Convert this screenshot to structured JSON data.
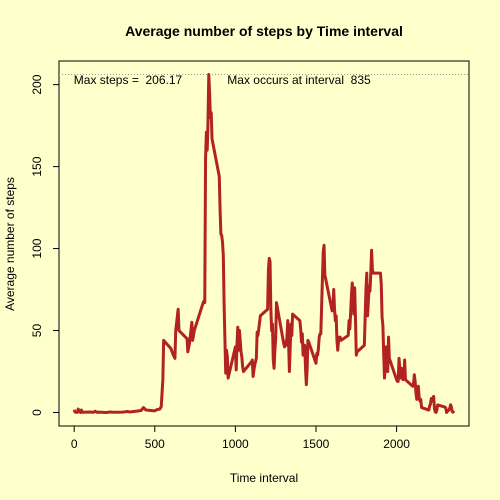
{
  "chart_data": {
    "type": "line",
    "title": "Average number of steps by Time interval",
    "x_label": "Time interval",
    "y_label": "Average number of steps",
    "x": [
      0,
      5,
      10,
      15,
      20,
      25,
      30,
      35,
      40,
      45,
      50,
      55,
      100,
      110,
      120,
      130,
      140,
      150,
      200,
      215,
      230,
      245,
      300,
      315,
      330,
      345,
      400,
      415,
      430,
      445,
      500,
      515,
      530,
      540,
      550,
      555,
      600,
      615,
      625,
      630,
      645,
      650,
      700,
      705,
      715,
      730,
      735,
      745,
      800,
      805,
      810,
      815,
      820,
      825,
      830,
      835,
      840,
      845,
      850,
      855,
      900,
      905,
      910,
      915,
      920,
      925,
      930,
      935,
      940,
      945,
      950,
      955,
      1000,
      1005,
      1010,
      1015,
      1020,
      1025,
      1030,
      1035,
      1040,
      1045,
      1050,
      1100,
      1105,
      1110,
      1115,
      1120,
      1130,
      1135,
      1140,
      1155,
      1200,
      1205,
      1210,
      1215,
      1220,
      1225,
      1230,
      1235,
      1240,
      1245,
      1250,
      1255,
      1300,
      1305,
      1310,
      1315,
      1320,
      1325,
      1330,
      1335,
      1340,
      1345,
      1350,
      1355,
      1400,
      1405,
      1410,
      1415,
      1420,
      1425,
      1430,
      1435,
      1440,
      1445,
      1450,
      1455,
      1500,
      1505,
      1510,
      1515,
      1520,
      1525,
      1530,
      1535,
      1540,
      1545,
      1550,
      1555,
      1600,
      1605,
      1610,
      1615,
      1620,
      1625,
      1630,
      1635,
      1640,
      1645,
      1650,
      1655,
      1700,
      1705,
      1710,
      1715,
      1720,
      1725,
      1730,
      1735,
      1740,
      1745,
      1750,
      1755,
      1800,
      1805,
      1810,
      1815,
      1820,
      1825,
      1830,
      1835,
      1840,
      1845,
      1850,
      1855,
      1900,
      1905,
      1910,
      1915,
      1920,
      1925,
      1930,
      1935,
      1940,
      1945,
      1950,
      1955,
      2000,
      2005,
      2010,
      2015,
      2020,
      2025,
      2030,
      2035,
      2040,
      2045,
      2050,
      2055,
      2100,
      2105,
      2110,
      2115,
      2120,
      2125,
      2130,
      2135,
      2140,
      2145,
      2150,
      2155,
      2200,
      2205,
      2210,
      2215,
      2220,
      2225,
      2230,
      2235,
      2240,
      2245,
      2250,
      2255,
      2300,
      2305,
      2310,
      2315,
      2320,
      2325,
      2330,
      2335,
      2340,
      2345,
      2350,
      2355
    ],
    "series": [
      {
        "name": "Average number of steps",
        "color": "#b22222",
        "values": [
          1.7,
          0.3,
          0.1,
          0.2,
          0.1,
          2.1,
          0.5,
          0.9,
          0,
          1.5,
          0.3,
          0.1,
          0.3,
          0.2,
          0.1,
          0.8,
          0.1,
          0.2,
          0,
          0.2,
          0.3,
          0.1,
          0.2,
          0.4,
          0.6,
          0.3,
          1,
          1.2,
          3,
          1.5,
          1,
          1.8,
          2,
          3.5,
          20,
          44,
          39,
          35,
          33,
          50,
          63,
          50,
          45,
          37,
          42,
          55,
          44,
          50,
          67,
          68,
          67,
          155,
          171,
          160,
          177,
          206.17,
          195,
          180,
          183,
          167,
          144,
          124,
          109,
          108,
          104,
          96,
          66,
          45,
          24,
          38,
          34,
          21,
          40,
          26,
          42,
          52,
          38,
          50,
          44,
          37,
          34,
          28,
          25,
          31,
          32,
          22,
          26,
          29,
          33,
          49,
          47,
          59,
          63,
          87,
          94,
          92,
          63,
          50,
          54,
          32,
          27,
          38,
          45,
          67,
          42,
          40,
          43,
          41,
          46,
          56,
          43,
          25,
          40,
          54,
          47,
          60,
          56,
          51,
          43,
          48,
          35,
          37,
          41,
          27,
          17,
          26,
          44,
          43,
          30,
          36,
          35,
          39,
          46,
          48,
          48,
          65,
          82,
          98,
          102,
          84,
          62,
          64,
          75,
          63,
          56,
          59,
          44,
          38,
          44,
          46,
          46,
          44,
          47,
          56,
          51,
          61,
          72,
          79,
          69,
          60,
          76,
          57,
          35,
          37,
          41,
          58,
          75,
          85,
          59,
          68,
          77,
          74,
          85,
          99,
          87,
          85,
          85,
          78,
          58,
          53,
          36,
          21,
          27,
          40,
          30,
          25,
          46,
          33,
          20,
          19,
          19,
          33,
          27,
          21,
          27,
          21,
          20,
          21,
          32,
          20,
          16,
          17,
          23,
          19,
          12,
          8,
          15,
          16,
          9,
          7,
          8,
          3,
          1.5,
          4,
          5,
          8.5,
          7,
          8.7,
          9.8,
          2.2,
          0.3,
          0.1,
          1.6,
          4.6,
          3.3,
          2.8,
          0,
          0.8,
          1,
          1.6,
          2.6,
          4.7,
          3.3,
          0.6,
          0.2,
          1.1
        ]
      }
    ],
    "reference_line": 206.17,
    "annotations": [
      "Max steps =  206.17",
      "Max occurs at interval  835"
    ],
    "xlim": [
      -94.2,
      2449.2
    ],
    "xticks": [
      0,
      500,
      1000,
      1500,
      2000
    ],
    "ylim": [
      -8.25,
      214.42
    ],
    "yticks": [
      0,
      50,
      100,
      150,
      200
    ]
  }
}
